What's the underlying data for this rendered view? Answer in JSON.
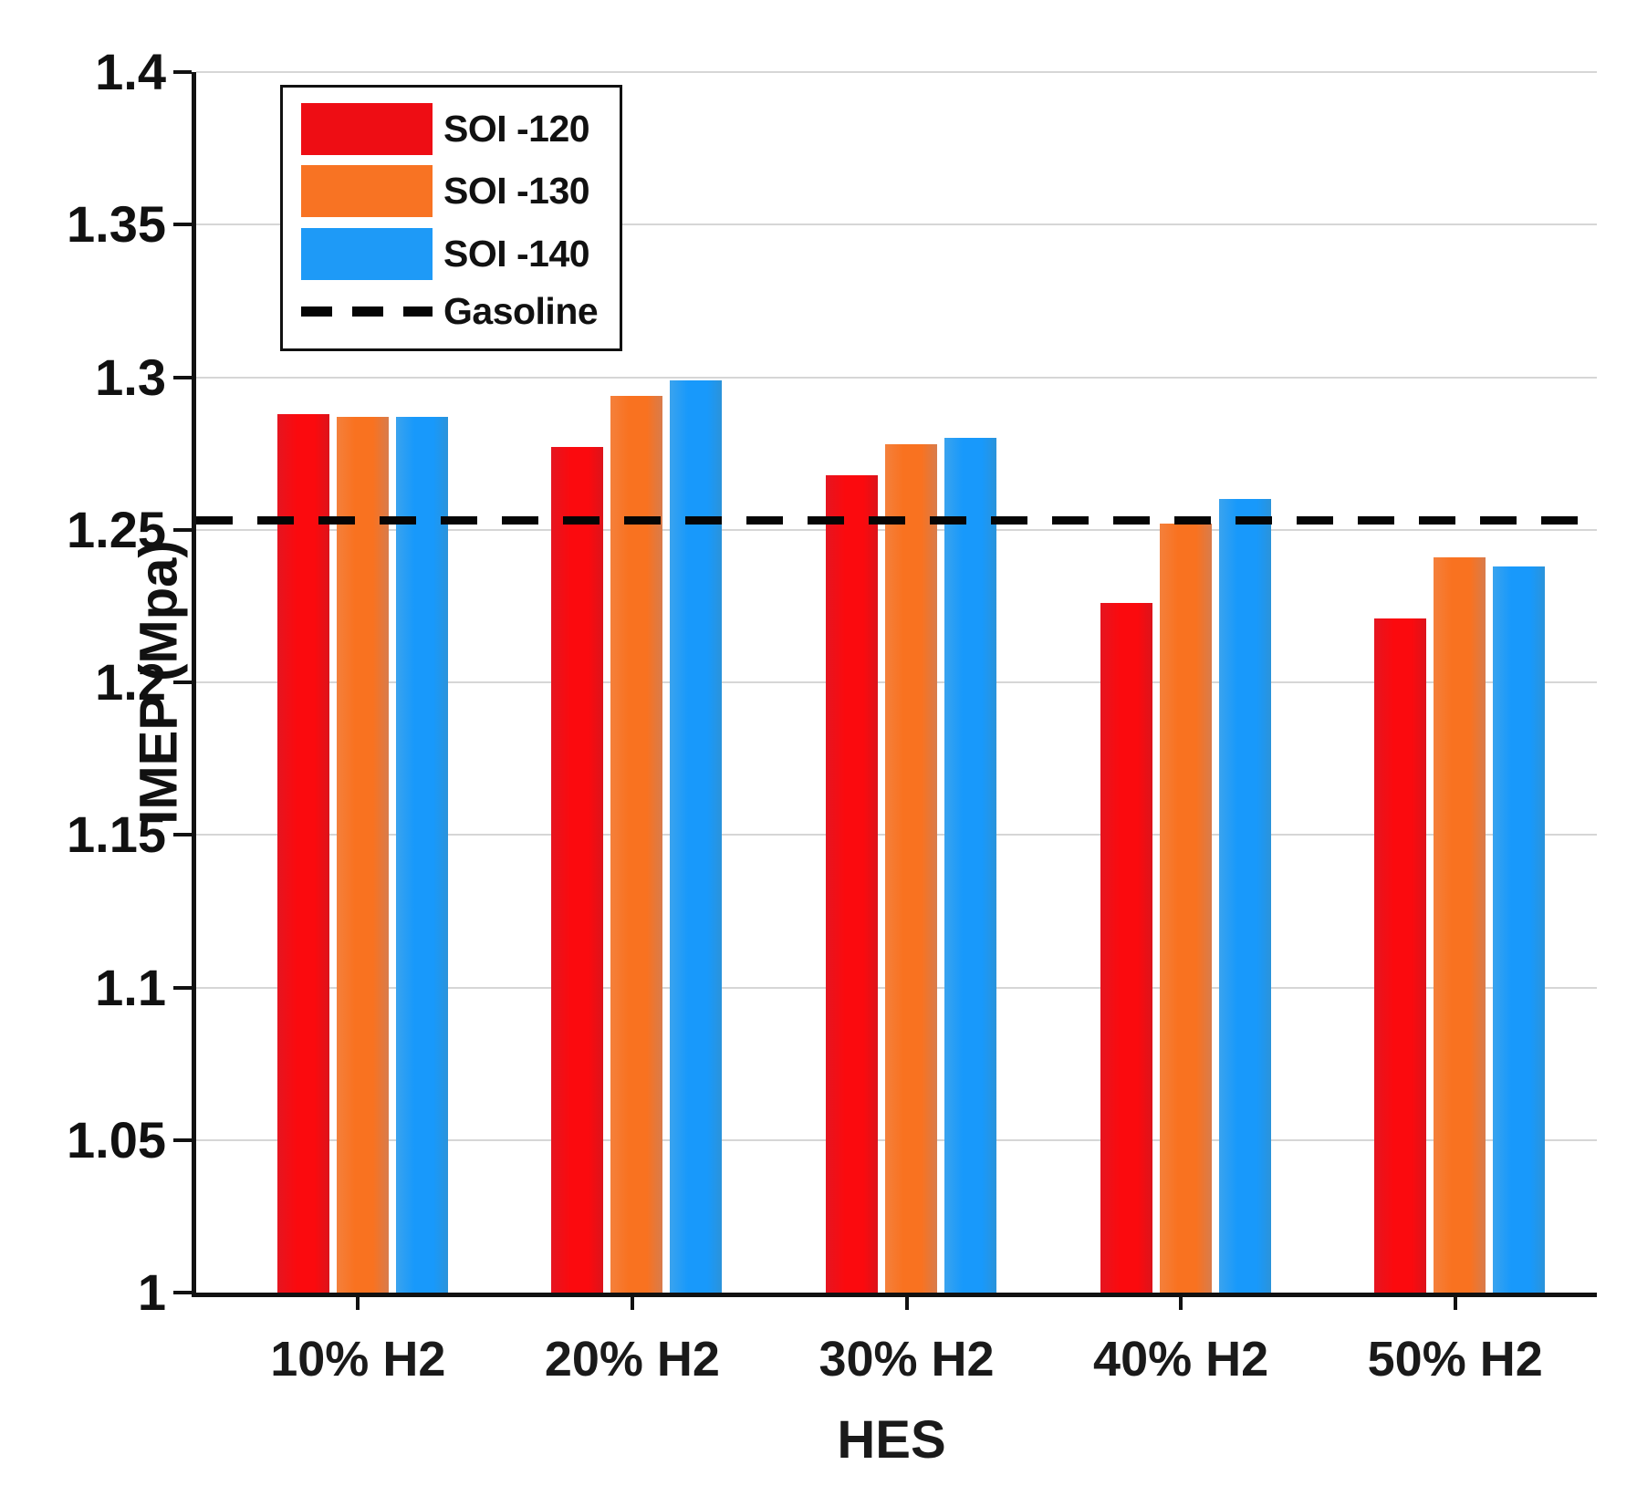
{
  "figure": {
    "background": "#ffffff"
  },
  "chart_data": {
    "type": "bar",
    "title": "",
    "xlabel": "HES",
    "ylabel": "IMEP (Mpa)",
    "ylim": [
      1.0,
      1.4
    ],
    "grid": true,
    "gridline_color": "#d6d6d6",
    "legend_position": "top-left",
    "yticks": [
      1,
      1.05,
      1.1,
      1.15,
      1.2,
      1.25,
      1.3,
      1.35,
      1.4
    ],
    "ytick_labels": [
      "1",
      "1.05",
      "1.1",
      "1.15",
      "1.2",
      "1.25",
      "1.3",
      "1.35",
      "1.4"
    ],
    "categories": [
      "10% H2",
      "20% H2",
      "30% H2",
      "40% H2",
      "50% H2"
    ],
    "series": [
      {
        "name": "SOI -120",
        "color": "#f40b10",
        "values": [
          1.288,
          1.277,
          1.268,
          1.226,
          1.221
        ]
      },
      {
        "name": "SOI -130",
        "color": "#f87323",
        "values": [
          1.287,
          1.294,
          1.278,
          1.252,
          1.241
        ]
      },
      {
        "name": "SOI -140",
        "color": "#1e9af7",
        "values": [
          1.287,
          1.299,
          1.28,
          1.26,
          1.238
        ]
      }
    ],
    "reference_line": {
      "name": "Gasoline",
      "value": 1.253,
      "style": "dashed",
      "color": "#000000"
    }
  }
}
